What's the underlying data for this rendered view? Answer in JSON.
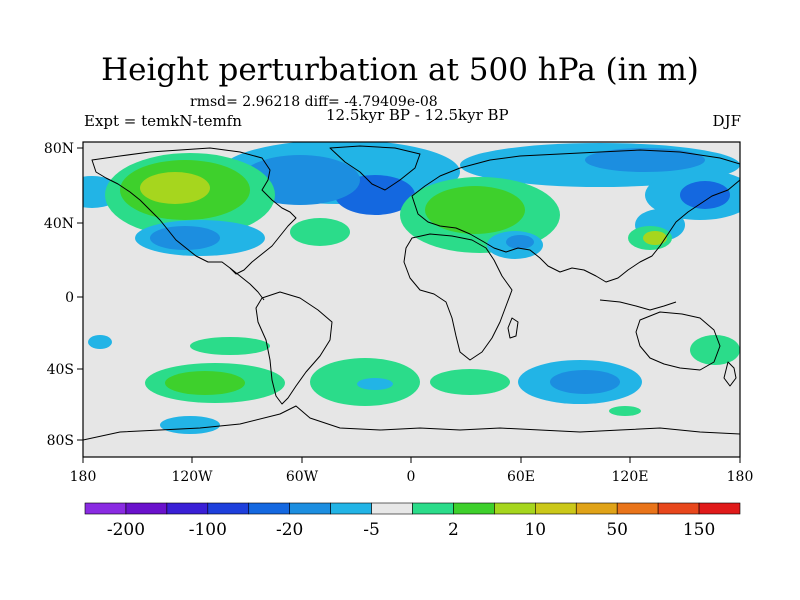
{
  "title": "Height perturbation at 500 hPa (in m)",
  "stats_line": "rmsd= 2.96218 diff= -4.79409e-08",
  "experiment_label": "Expt = temkN-temfn",
  "period_label": "12.5kyr BP - 12.5kyr BP",
  "season_label": "DJF",
  "axes": {
    "lat_ticks": [
      "80N",
      "40N",
      "0",
      "40S",
      "80S"
    ],
    "lon_ticks": [
      "180",
      "120W",
      "60W",
      "0",
      "60E",
      "120E",
      "180"
    ]
  },
  "colorbar": {
    "colors": [
      "#8a2be2",
      "#6a12cc",
      "#3a1fd6",
      "#1e3fdc",
      "#1468e0",
      "#1c8ee0",
      "#22b4e6",
      "#e8e8e8",
      "#2bdc8a",
      "#3ed02c",
      "#a6d61e",
      "#cbc819",
      "#e0a318",
      "#e9741a",
      "#e8471c",
      "#e01a1a"
    ],
    "labels": [
      "-200",
      "-100",
      "-20",
      "-5",
      "2",
      "10",
      "50",
      "150"
    ]
  },
  "map_colors": {
    "background": "#e6e6e6",
    "land_outline": "#000000",
    "light_blue": "#22b4e6",
    "blue": "#1c8ee0",
    "dark_blue": "#1468e0",
    "teal": "#2bdc8a",
    "green": "#3ed02c",
    "yellow_green": "#a6d61e"
  }
}
